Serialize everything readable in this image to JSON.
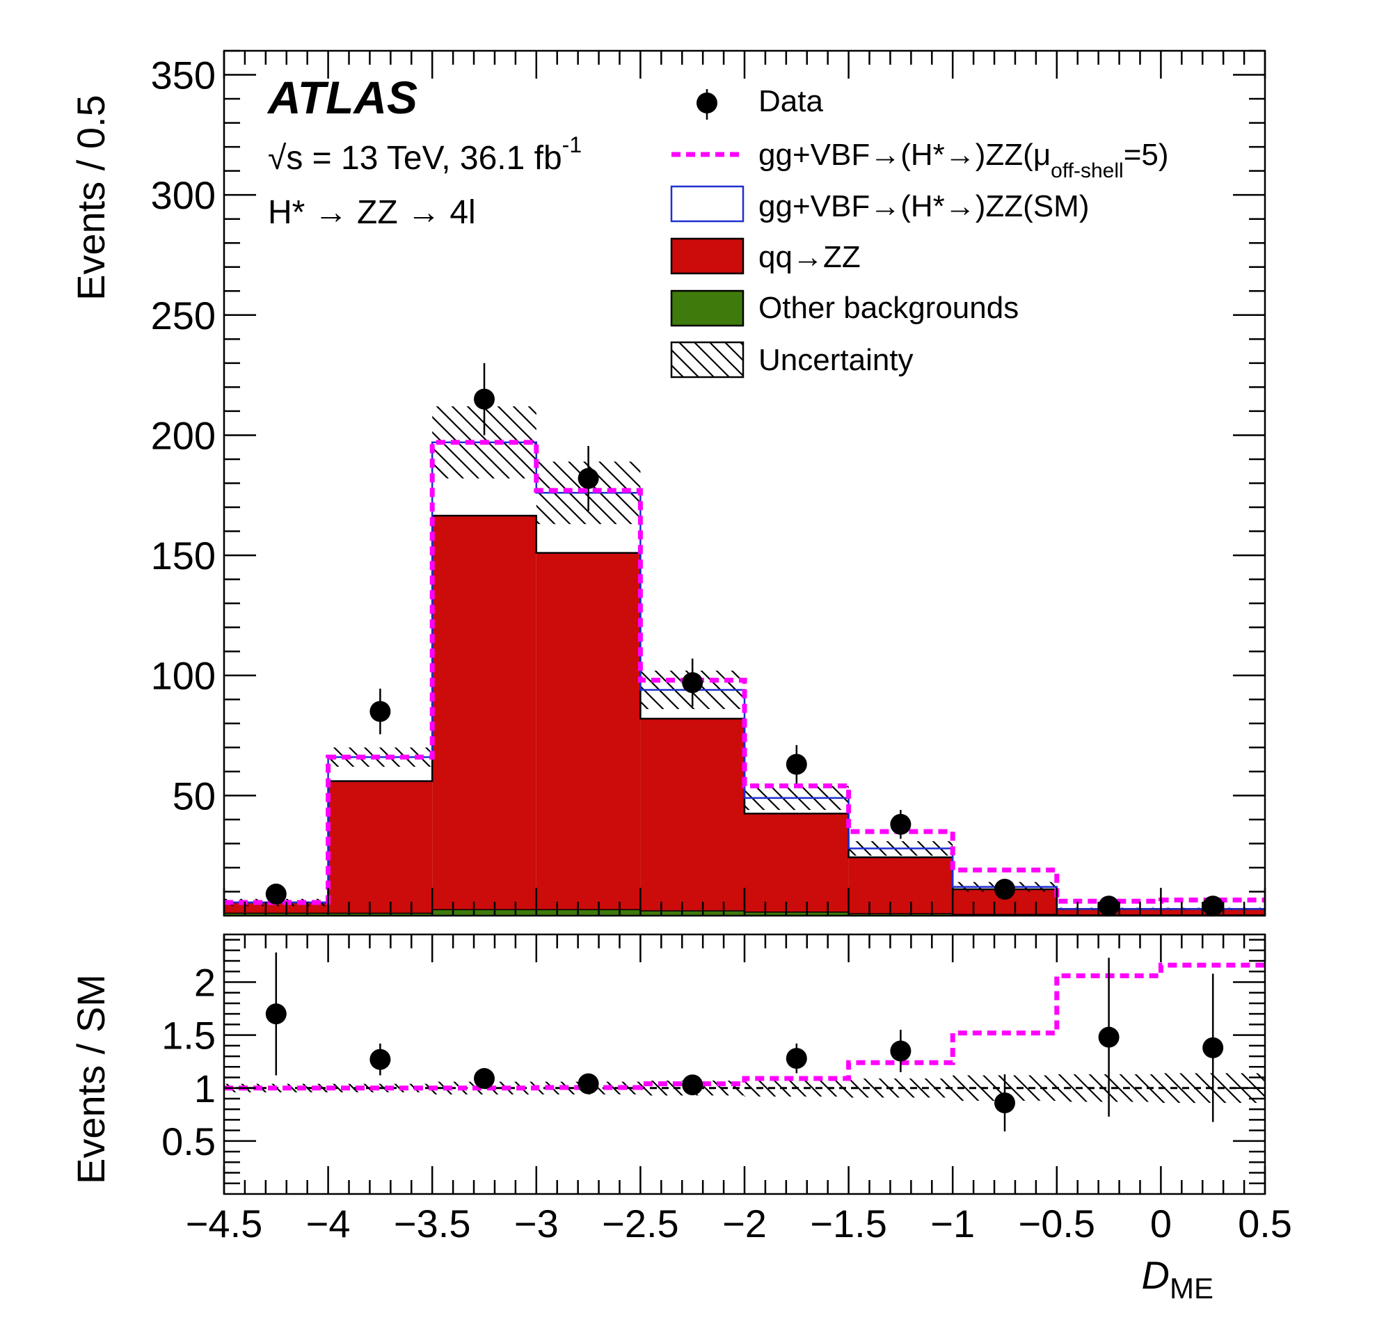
{
  "chart_data": [
    {
      "type": "bar",
      "panel": "main",
      "experiment_label": "ATLAS",
      "energy_label": "√s = 13 TeV, 36.1 fb",
      "energy_label_sup": "-1",
      "process_label": "H* → ZZ → 4l",
      "xlabel": "D",
      "xlabel_sub": "ME",
      "ylabel": "Events / 0.5",
      "xlim": [
        -4.5,
        0.5
      ],
      "ylim": [
        0,
        360
      ],
      "x_tick_labels": [
        "−4.5",
        "−4",
        "−3.5",
        "−3",
        "−2.5",
        "−2",
        "−1.5",
        "−1",
        "−0.5",
        "0",
        "0.5"
      ],
      "y_tick_labels": [
        "50",
        "100",
        "150",
        "200",
        "250",
        "300",
        "350"
      ],
      "bin_edges": [
        -4.5,
        -4.0,
        -3.5,
        -3.0,
        -2.5,
        -2.0,
        -1.5,
        -1.0,
        -0.5,
        0.0,
        0.5
      ],
      "series": [
        {
          "name": "Other backgrounds",
          "color": "#3f7a0c",
          "values": [
            1.0,
            1.0,
            2.5,
            2.5,
            2.0,
            1.5,
            0.8,
            0.5,
            0.3,
            0.3
          ]
        },
        {
          "name": "qq→ZZ",
          "color": "#cc0b0b",
          "values": [
            4.5,
            55,
            164,
            148.5,
            80,
            41,
            23.5,
            10.5,
            2.5,
            2.5
          ]
        },
        {
          "name": "gg+VBF→(H*→)ZZ(SM)",
          "color": "#1e2fd0",
          "values": [
            5.5,
            66,
            197,
            176,
            94,
            49,
            28,
            12,
            2.8,
            2.8
          ]
        },
        {
          "name": "gg+VBF→(H*→)ZZ(μ_off-shell=5)",
          "color": "#ff00ff",
          "values": [
            5.5,
            66,
            197,
            177,
            98,
            54,
            35,
            19,
            6,
            6.5
          ]
        }
      ],
      "uncertainty": {
        "name": "Uncertainty",
        "half_width": [
          1.5,
          4,
          15,
          13,
          8,
          5,
          3,
          2,
          0.5,
          0.5
        ]
      },
      "data": {
        "name": "Data",
        "x": [
          -4.25,
          -3.75,
          -3.25,
          -2.75,
          -2.25,
          -1.75,
          -1.25,
          -0.75,
          -0.25,
          0.25
        ],
        "y": [
          9,
          85,
          215,
          182,
          97,
          63,
          38,
          11,
          4,
          4
        ],
        "err": [
          3,
          9.5,
          15,
          13.5,
          10,
          8,
          6,
          3.3,
          2,
          2
        ]
      },
      "legend": {
        "position": "top-right",
        "entries": [
          {
            "text": "Data",
            "style": "marker"
          },
          {
            "text": "gg+VBF→(H*→)ZZ(μ",
            "sub": "off-shell",
            "tail": "=5)",
            "style": "dashed-line",
            "color": "#ff00ff"
          },
          {
            "text": "gg+VBF→(H*→)ZZ(SM)",
            "style": "box-outline",
            "color": "#1e2fd0"
          },
          {
            "text": "qq→ZZ",
            "style": "box-fill",
            "color": "#cc0b0b"
          },
          {
            "text": "Other backgrounds",
            "style": "box-fill",
            "color": "#3f7a0c"
          },
          {
            "text": "Uncertainty",
            "style": "hatch"
          }
        ]
      }
    },
    {
      "type": "scatter",
      "panel": "ratio",
      "ylabel": "Events / SM",
      "ylim": [
        0,
        2.45
      ],
      "y_tick_labels": [
        "0.5",
        "1",
        "1.5",
        "2"
      ],
      "reference_line": 1,
      "data_ratio": {
        "x": [
          -4.25,
          -3.75,
          -3.25,
          -2.75,
          -2.25,
          -1.75,
          -1.25,
          -0.75,
          -0.25,
          0.25
        ],
        "y": [
          1.7,
          1.27,
          1.09,
          1.04,
          1.03,
          1.28,
          1.35,
          0.86,
          1.48,
          1.38
        ],
        "err": [
          0.58,
          0.15,
          0.05,
          0.04,
          0.06,
          0.14,
          0.2,
          0.27,
          0.75,
          0.7
        ]
      },
      "bsm_ratio": [
        1.0,
        1.0,
        1.0,
        1.005,
        1.04,
        1.09,
        1.24,
        1.52,
        2.06,
        2.16
      ],
      "uncertainty_half_width": [
        0.04,
        0.04,
        0.06,
        0.06,
        0.07,
        0.08,
        0.09,
        0.12,
        0.13,
        0.14
      ]
    }
  ]
}
